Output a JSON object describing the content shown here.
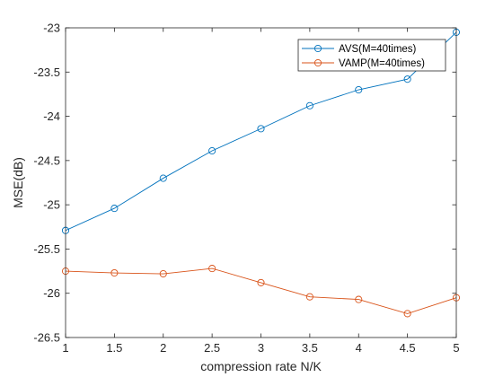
{
  "chart_data": {
    "type": "line",
    "title": "",
    "xlabel": "compression rate N/K",
    "ylabel": "MSE(dB)",
    "xlim": [
      1,
      5
    ],
    "ylim": [
      -26.5,
      -23
    ],
    "xticks": [
      1,
      1.5,
      2,
      2.5,
      3,
      3.5,
      4,
      4.5,
      5
    ],
    "xtick_labels": [
      "1",
      "1.5",
      "2",
      "2.5",
      "3",
      "3.5",
      "4",
      "4.5",
      "5"
    ],
    "yticks": [
      -26.5,
      -26,
      -25.5,
      -25,
      -24.5,
      -24,
      -23.5,
      -23
    ],
    "ytick_labels": [
      "-26.5",
      "-26",
      "-25.5",
      "-25",
      "-24.5",
      "-24",
      "-23.5",
      "-23"
    ],
    "grid": false,
    "legend_position": "top-right",
    "x": [
      1,
      1.5,
      2,
      2.5,
      3,
      3.5,
      4,
      4.5,
      5
    ],
    "series": [
      {
        "name": "AVS(M=40times)",
        "color": "#0072BD",
        "marker": "circle",
        "values": [
          -25.29,
          -25.04,
          -24.7,
          -24.39,
          -24.14,
          -23.88,
          -23.7,
          -23.58,
          -23.05
        ]
      },
      {
        "name": "VAMP(M=40times)",
        "color": "#D95319",
        "marker": "circle",
        "values": [
          -25.75,
          -25.77,
          -25.78,
          -25.72,
          -25.88,
          -26.04,
          -26.07,
          -26.23,
          -26.05
        ]
      }
    ]
  }
}
